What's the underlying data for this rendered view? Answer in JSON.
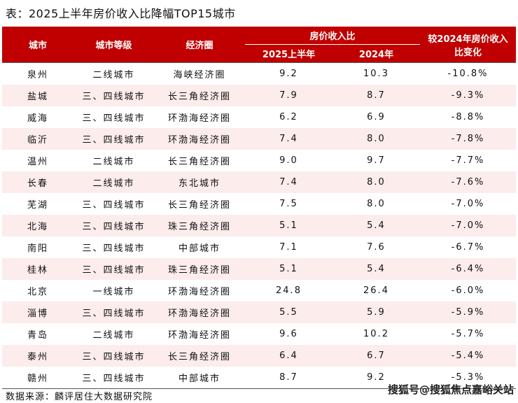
{
  "title": "表：2025上半年房价收入比降幅TOP15城市",
  "headers": {
    "city": "城市",
    "grade": "城市等级",
    "zone": "经济圈",
    "ratio": "房价收入比",
    "h2025": "2025上半年",
    "y2024": "2024年",
    "change": "较2024年房价收入比变化"
  },
  "rows": [
    [
      "泉州",
      "二线城市",
      "海峡经济圈",
      "9.2",
      "10.3",
      "-10.8%"
    ],
    [
      "盐城",
      "三、四线城市",
      "长三角经济圈",
      "7.9",
      "8.7",
      "-9.3%"
    ],
    [
      "威海",
      "三、四线城市",
      "环渤海经济圈",
      "6.2",
      "6.9",
      "-8.8%"
    ],
    [
      "临沂",
      "三、四线城市",
      "环渤海经济圈",
      "7.4",
      "8.0",
      "-7.8%"
    ],
    [
      "温州",
      "二线城市",
      "长三角经济圈",
      "9.0",
      "9.7",
      "-7.7%"
    ],
    [
      "长春",
      "二线城市",
      "东北城市",
      "7.4",
      "8.0",
      "-7.6%"
    ],
    [
      "芜湖",
      "三、四线城市",
      "长三角经济圈",
      "7.5",
      "8.0",
      "-7.0%"
    ],
    [
      "北海",
      "三、四线城市",
      "珠三角经济圈",
      "5.1",
      "5.4",
      "-7.0%"
    ],
    [
      "南阳",
      "三、四线城市",
      "中部城市",
      "7.1",
      "7.6",
      "-6.7%"
    ],
    [
      "桂林",
      "三、四线城市",
      "珠三角经济圈",
      "5.1",
      "5.4",
      "-6.4%"
    ],
    [
      "北京",
      "一线城市",
      "环渤海经济圈",
      "24.8",
      "26.4",
      "-6.0%"
    ],
    [
      "淄博",
      "三、四线城市",
      "环渤海经济圈",
      "5.5",
      "5.9",
      "-5.9%"
    ],
    [
      "青岛",
      "二线城市",
      "环渤海经济圈",
      "9.6",
      "10.2",
      "-5.7%"
    ],
    [
      "泰州",
      "三、四线城市",
      "长三角经济圈",
      "6.4",
      "6.7",
      "-5.4%"
    ],
    [
      "赣州",
      "三、四线城市",
      "中部城市",
      "8.7",
      "9.2",
      "-5.3%"
    ]
  ],
  "source": "数据来源：麟评居住大数据研究院",
  "watermark": "搜狐号@搜狐焦点嘉峪关站",
  "colors": {
    "header_bg": "#c00000",
    "stripe": "#fcecec"
  }
}
